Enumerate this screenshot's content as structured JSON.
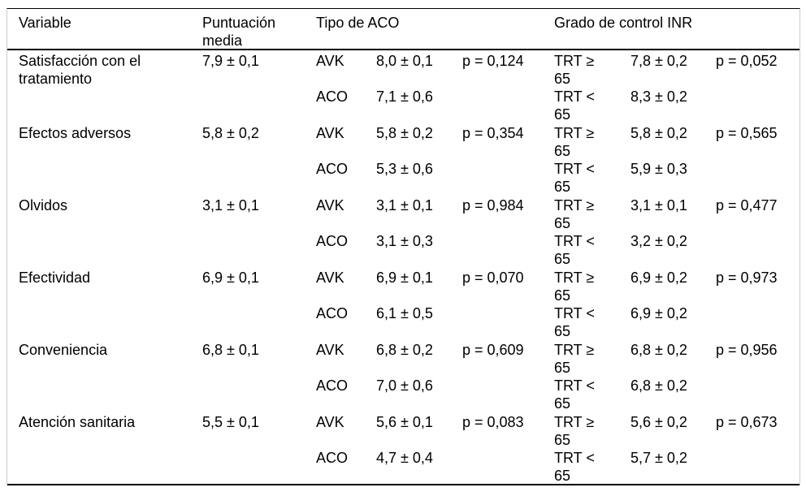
{
  "table": {
    "header": {
      "variable": "Variable",
      "media": "Puntuación media",
      "tipo": "Tipo de ACO",
      "inr": "Grado de control INR"
    },
    "rows": [
      {
        "variable": "Satisfacción con el tratamiento",
        "media": "7,9 ± 0,1",
        "tipo": [
          {
            "label": "AVK",
            "value": "8,0 ± 0,1",
            "p": "p = 0,124"
          },
          {
            "label": "ACO",
            "value": "7,1 ± 0,6",
            "p": ""
          }
        ],
        "inr": [
          {
            "label": "TRT ≥ 65",
            "value": "7,8 ± 0,2",
            "p": "p = 0,052"
          },
          {
            "label": "TRT < 65",
            "value": "8,3 ± 0,2",
            "p": ""
          }
        ]
      },
      {
        "variable": "Efectos adversos",
        "media": "5,8 ± 0,2",
        "tipo": [
          {
            "label": "AVK",
            "value": "5,8 ± 0,2",
            "p": "p = 0,354"
          },
          {
            "label": "ACO",
            "value": "5,3 ± 0,6",
            "p": ""
          }
        ],
        "inr": [
          {
            "label": "TRT ≥ 65",
            "value": "5,8 ± 0,2",
            "p": "p = 0,565"
          },
          {
            "label": "TRT < 65",
            "value": "5,9 ± 0,3",
            "p": ""
          }
        ]
      },
      {
        "variable": "Olvidos",
        "media": "3,1 ± 0,1",
        "tipo": [
          {
            "label": "AVK",
            "value": "3,1 ± 0,1",
            "p": "p = 0,984"
          },
          {
            "label": "ACO",
            "value": "3,1 ± 0,3",
            "p": ""
          }
        ],
        "inr": [
          {
            "label": "TRT ≥ 65",
            "value": "3,1 ± 0,1",
            "p": "p = 0,477"
          },
          {
            "label": "TRT < 65",
            "value": "3,2 ± 0,2",
            "p": ""
          }
        ]
      },
      {
        "variable": "Efectividad",
        "media": "6,9 ± 0,1",
        "tipo": [
          {
            "label": "AVK",
            "value": "6,9 ± 0,1",
            "p": "p = 0,070"
          },
          {
            "label": "ACO",
            "value": "6,1 ± 0,5",
            "p": ""
          }
        ],
        "inr": [
          {
            "label": "TRT ≥ 65",
            "value": "6,9 ± 0,2",
            "p": "p = 0,973"
          },
          {
            "label": "TRT < 65",
            "value": "6,9 ± 0,2",
            "p": ""
          }
        ]
      },
      {
        "variable": "Conveniencia",
        "media": "6,8 ± 0,1",
        "tipo": [
          {
            "label": "AVK",
            "value": "6,8 ± 0,2",
            "p": "p = 0,609"
          },
          {
            "label": "ACO",
            "value": "7,0 ± 0,6",
            "p": ""
          }
        ],
        "inr": [
          {
            "label": "TRT ≥ 65",
            "value": "6,8 ± 0,2",
            "p": "p = 0,956"
          },
          {
            "label": "TRT < 65",
            "value": "6,8 ± 0,2",
            "p": ""
          }
        ]
      },
      {
        "variable": "Atención sanitaria",
        "media": "5,5 ± 0,1",
        "tipo": [
          {
            "label": "AVK",
            "value": "5,6 ± 0,1",
            "p": "p = 0,083"
          },
          {
            "label": "ACO",
            "value": "4,7 ± 0,4",
            "p": ""
          }
        ],
        "inr": [
          {
            "label": "TRT ≥ 65",
            "value": "5,6 ± 0,2",
            "p": "p = 0,673"
          },
          {
            "label": "TRT < 65",
            "value": "5,7 ± 0,2",
            "p": ""
          }
        ]
      }
    ]
  }
}
